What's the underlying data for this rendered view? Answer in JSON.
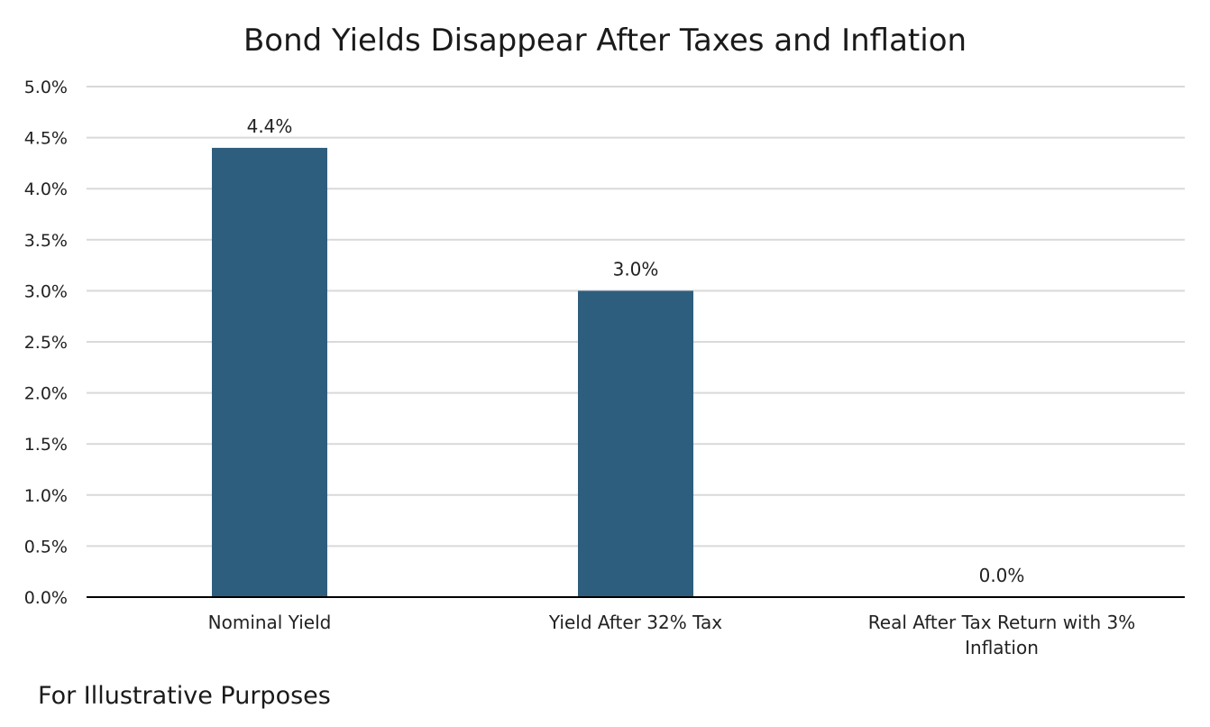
{
  "chart_data": {
    "type": "bar",
    "title": "Bond Yields Disappear After Taxes and Inflation",
    "categories": [
      "Nominal Yield",
      "Yield After 32% Tax",
      "Real After Tax Return with 3% Inflation"
    ],
    "category_label_lines": [
      [
        "Nominal Yield"
      ],
      [
        "Yield After 32% Tax"
      ],
      [
        "Real After Tax Return with 3%",
        "Inflation"
      ]
    ],
    "values": [
      4.4,
      3.0,
      0.0
    ],
    "data_labels": [
      "4.4%",
      "3.0%",
      "0.0%"
    ],
    "xlabel": "",
    "ylabel": "",
    "ylim": [
      0,
      5
    ],
    "y_ticks": [
      0,
      0.5,
      1,
      1.5,
      2,
      2.5,
      3,
      3.5,
      4,
      4.5,
      5
    ],
    "y_tick_labels": [
      "0.0%",
      "0.5%",
      "1.0%",
      "1.5%",
      "2.0%",
      "2.5%",
      "3.0%",
      "3.5%",
      "4.0%",
      "4.5%",
      "5.0%"
    ],
    "grid": true,
    "legend": "none",
    "colors": {
      "bar": "#2e5e7e",
      "grid": "#d9d9d9",
      "axis": "#000000"
    }
  },
  "footnote": "For Illustrative Purposes"
}
